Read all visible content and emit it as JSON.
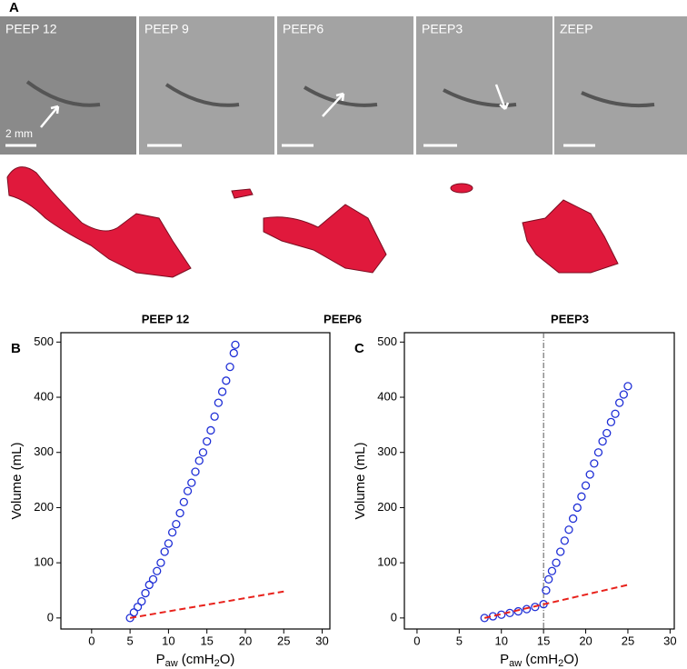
{
  "panel_a": {
    "label": "A",
    "ct_images": [
      {
        "label": "PEEP 12"
      },
      {
        "label": "PEEP 9"
      },
      {
        "label": "PEEP6"
      },
      {
        "label": "PEEP3"
      },
      {
        "label": "ZEEP"
      }
    ],
    "scale_label": "2 mm",
    "renderings": [
      {
        "label": "PEEP 12"
      },
      {
        "label": "PEEP6"
      },
      {
        "label": "PEEP3"
      }
    ]
  },
  "chart_data": [
    {
      "type": "scatter",
      "panel": "B",
      "ylabel": "Volume (mL)",
      "xlabel": {
        "main": "P",
        "sub": "aw",
        "unit_pre": " (cmH",
        "unit_sub": "2",
        "unit_post": "O)"
      },
      "xlim": [
        -4,
        31
      ],
      "ylim": [
        -20,
        517
      ],
      "xticks": [
        0,
        5,
        10,
        15,
        20,
        25,
        30
      ],
      "yticks": [
        0,
        100,
        200,
        300,
        400,
        500
      ],
      "series": [
        {
          "color": "#1f2fd6",
          "marker": "circle",
          "x": [
            5,
            5.5,
            6,
            6.5,
            7,
            7.5,
            8,
            8.5,
            9,
            9.5,
            10,
            10.5,
            11,
            11.5,
            12,
            12.5,
            13,
            13.5,
            14,
            14.5,
            15,
            15.5,
            16,
            16.5,
            17,
            17.5,
            18,
            18.5,
            18.7
          ],
          "values": [
            0,
            10,
            20,
            30,
            45,
            60,
            70,
            85,
            100,
            120,
            135,
            155,
            170,
            190,
            210,
            230,
            245,
            265,
            285,
            300,
            320,
            340,
            365,
            390,
            410,
            430,
            455,
            480,
            495
          ]
        },
        {
          "color": "#e8221c",
          "marker": "dashed-line",
          "x": [
            5,
            25
          ],
          "values": [
            0,
            48
          ]
        }
      ]
    },
    {
      "type": "scatter",
      "panel": "C",
      "ylabel": "Volume (mL)",
      "xlabel": {
        "main": "P",
        "sub": "aw",
        "unit_pre": " (cmH",
        "unit_sub": "2",
        "unit_post": "O)"
      },
      "xlim": [
        -1.5,
        30.5
      ],
      "ylim": [
        -20,
        517
      ],
      "xticks": [
        0,
        5,
        10,
        15,
        20,
        25,
        30
      ],
      "yticks": [
        0,
        100,
        200,
        300,
        400,
        500
      ],
      "vline": 15,
      "series": [
        {
          "color": "#1f2fd6",
          "marker": "circle",
          "x": [
            8,
            9,
            10,
            11,
            12,
            13,
            14,
            15,
            15.3,
            15.6,
            16,
            16.5,
            17,
            17.5,
            18,
            18.5,
            19,
            19.5,
            20,
            20.5,
            21,
            21.5,
            22,
            22.5,
            23,
            23.5,
            24,
            24.5,
            25
          ],
          "values": [
            0,
            3,
            6,
            9,
            12,
            16,
            20,
            25,
            50,
            70,
            85,
            100,
            120,
            140,
            160,
            180,
            200,
            220,
            240,
            260,
            280,
            300,
            320,
            335,
            355,
            370,
            390,
            405,
            420
          ]
        },
        {
          "color": "#e8221c",
          "marker": "dashed-line",
          "x": [
            8,
            25
          ],
          "values": [
            0,
            60
          ]
        }
      ]
    }
  ]
}
